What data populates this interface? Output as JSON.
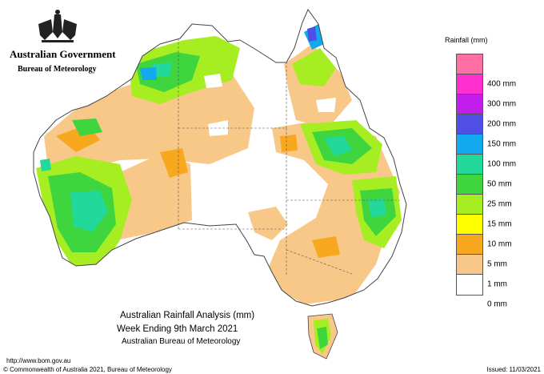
{
  "header": {
    "government": "Australian Government",
    "bureau": "Bureau of Meteorology",
    "logo_icon": "coat-of-arms-icon"
  },
  "legend": {
    "title": "Rainfall (mm)",
    "bands": [
      {
        "label": "",
        "color": "#ff6fa6"
      },
      {
        "label": "400 mm",
        "color": "#ff2fd0"
      },
      {
        "label": "300 mm",
        "color": "#c21eeb"
      },
      {
        "label": "200 mm",
        "color": "#4f4fe6"
      },
      {
        "label": "150 mm",
        "color": "#12a9ee"
      },
      {
        "label": "100 mm",
        "color": "#22d89a"
      },
      {
        "label": "50 mm",
        "color": "#3ed53e"
      },
      {
        "label": "25 mm",
        "color": "#a6ee22"
      },
      {
        "label": "15 mm",
        "color": "#ffff00"
      },
      {
        "label": "10 mm",
        "color": "#f7a81e"
      },
      {
        "label": "5 mm",
        "color": "#f8c888"
      },
      {
        "label": "1 mm",
        "color": "#ffffff"
      },
      {
        "label": "0 mm",
        "color": ""
      }
    ]
  },
  "title": {
    "line1": "Australian Rainfall Analysis (mm)",
    "line2": "Week Ending 9th March 2021",
    "line3": "Australian Bureau of Meteorology"
  },
  "footer": {
    "url": "http://www.bom.gov.au",
    "copyright": "© Commonwealth of Australia 2021, Bureau of Meteorology",
    "issued": "Issued: 11/03/2021"
  }
}
